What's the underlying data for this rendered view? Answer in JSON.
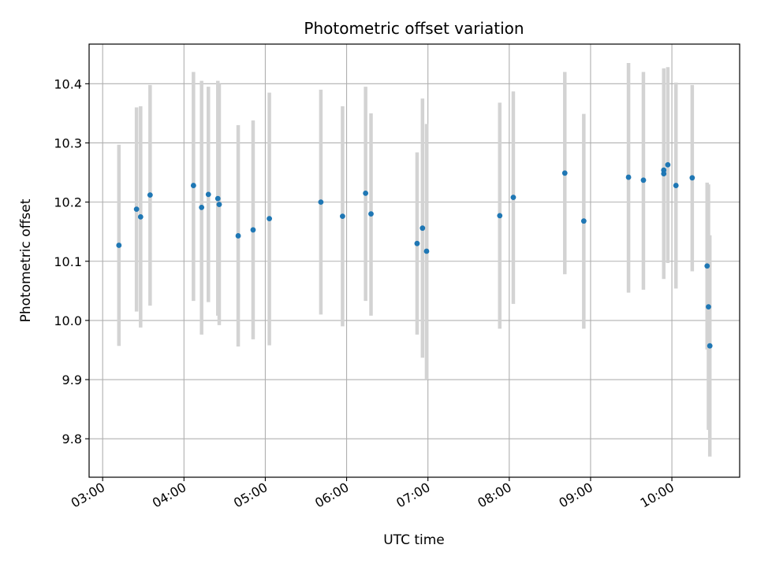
{
  "chart_data": {
    "type": "scatter",
    "title": "Photometric offset variation",
    "xlabel": "UTC time",
    "ylabel": "Photometric offset",
    "x_axis_type": "time",
    "xlim": [
      "02:50",
      "10:50"
    ],
    "ylim": [
      9.735,
      10.467
    ],
    "xticks": [
      "03:00",
      "04:00",
      "05:00",
      "06:00",
      "07:00",
      "08:00",
      "09:00",
      "10:00"
    ],
    "yticks": [
      9.8,
      9.9,
      10.0,
      10.1,
      10.2,
      10.3,
      10.4
    ],
    "grid": true,
    "legend": "none",
    "colors": {
      "point": "#1f77b4",
      "errorbar": "#d3d3d3",
      "grid": "#b0b0b0"
    },
    "series": [
      {
        "points": [
          {
            "x": "03:12",
            "y": 10.127,
            "low": 9.957,
            "high": 10.297
          },
          {
            "x": "03:25",
            "y": 10.188,
            "low": 10.015,
            "high": 10.36
          },
          {
            "x": "03:28",
            "y": 10.175,
            "low": 9.988,
            "high": 10.362
          },
          {
            "x": "03:35",
            "y": 10.212,
            "low": 10.025,
            "high": 10.398
          },
          {
            "x": "04:07",
            "y": 10.228,
            "low": 10.033,
            "high": 10.42
          },
          {
            "x": "04:13",
            "y": 10.191,
            "low": 9.976,
            "high": 10.405
          },
          {
            "x": "04:18",
            "y": 10.213,
            "low": 10.031,
            "high": 10.395
          },
          {
            "x": "04:25",
            "y": 10.206,
            "low": 10.008,
            "high": 10.405
          },
          {
            "x": "04:26",
            "y": 10.196,
            "low": 9.992,
            "high": 10.4
          },
          {
            "x": "04:40",
            "y": 10.143,
            "low": 9.956,
            "high": 10.33
          },
          {
            "x": "04:51",
            "y": 10.153,
            "low": 9.968,
            "high": 10.338
          },
          {
            "x": "05:03",
            "y": 10.172,
            "low": 9.958,
            "high": 10.385
          },
          {
            "x": "05:41",
            "y": 10.2,
            "low": 10.01,
            "high": 10.39
          },
          {
            "x": "05:57",
            "y": 10.176,
            "low": 9.99,
            "high": 10.362
          },
          {
            "x": "06:14",
            "y": 10.215,
            "low": 10.033,
            "high": 10.395
          },
          {
            "x": "06:18",
            "y": 10.18,
            "low": 10.008,
            "high": 10.35
          },
          {
            "x": "06:52",
            "y": 10.13,
            "low": 9.976,
            "high": 10.284
          },
          {
            "x": "06:56",
            "y": 10.156,
            "low": 9.937,
            "high": 10.375
          },
          {
            "x": "06:59",
            "y": 10.117,
            "low": 9.9,
            "high": 10.332
          },
          {
            "x": "07:53",
            "y": 10.177,
            "low": 9.986,
            "high": 10.368
          },
          {
            "x": "08:03",
            "y": 10.208,
            "low": 10.028,
            "high": 10.387
          },
          {
            "x": "08:41",
            "y": 10.249,
            "low": 10.078,
            "high": 10.42
          },
          {
            "x": "08:55",
            "y": 10.168,
            "low": 9.986,
            "high": 10.349
          },
          {
            "x": "09:28",
            "y": 10.242,
            "low": 10.047,
            "high": 10.435
          },
          {
            "x": "09:39",
            "y": 10.237,
            "low": 10.052,
            "high": 10.42
          },
          {
            "x": "09:54",
            "y": 10.254,
            "low": 10.077,
            "high": 10.425
          },
          {
            "x": "09:54",
            "y": 10.248,
            "low": 10.07,
            "high": 10.426
          },
          {
            "x": "09:57",
            "y": 10.263,
            "low": 10.097,
            "high": 10.428
          },
          {
            "x": "10:03",
            "y": 10.228,
            "low": 10.054,
            "high": 10.402
          },
          {
            "x": "10:15",
            "y": 10.241,
            "low": 10.083,
            "high": 10.398
          },
          {
            "x": "10:26",
            "y": 10.092,
            "low": 9.951,
            "high": 10.233
          },
          {
            "x": "10:27",
            "y": 10.023,
            "low": 9.815,
            "high": 10.23
          },
          {
            "x": "10:28",
            "y": 9.957,
            "low": 9.77,
            "high": 10.144
          }
        ]
      }
    ]
  }
}
